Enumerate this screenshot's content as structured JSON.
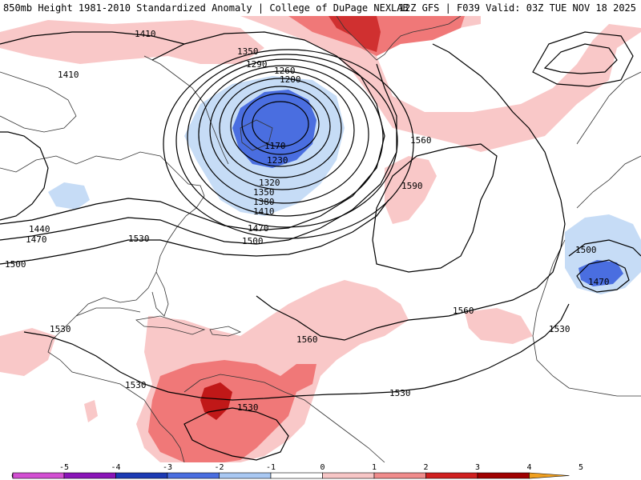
{
  "header": {
    "title_left": "850mb Height 1981-2010 Standardized Anomaly | College of DuPage NEXLAB",
    "title_right": "12Z GFS | F039 Valid: 03Z TUE NOV 18 2025"
  },
  "contour_labels": [
    {
      "name": "label-1410-nw",
      "text": "1410"
    },
    {
      "name": "label-1410-w",
      "text": "1410"
    },
    {
      "name": "label-1350",
      "text": "1350"
    },
    {
      "name": "label-1290",
      "text": "1290"
    },
    {
      "name": "label-1260",
      "text": "1260"
    },
    {
      "name": "label-1200",
      "text": "1200"
    },
    {
      "name": "label-1170",
      "text": "1170"
    },
    {
      "name": "label-1230",
      "text": "1230"
    },
    {
      "name": "label-1320",
      "text": "1320"
    },
    {
      "name": "label-1350-s",
      "text": "1350"
    },
    {
      "name": "label-1380",
      "text": "1380"
    },
    {
      "name": "label-1410-s",
      "text": "1410"
    },
    {
      "name": "label-1470",
      "text": "1470"
    },
    {
      "name": "label-1500",
      "text": "1500"
    },
    {
      "name": "label-1440",
      "text": "1440"
    },
    {
      "name": "label-1470-w",
      "text": "1470"
    },
    {
      "name": "label-1500-w",
      "text": "1500"
    },
    {
      "name": "label-1530",
      "text": "1530"
    },
    {
      "name": "label-1560-n",
      "text": "1560"
    },
    {
      "name": "label-1590",
      "text": "1590"
    },
    {
      "name": "label-1560-c",
      "text": "1560"
    },
    {
      "name": "label-1560-s",
      "text": "1560"
    },
    {
      "name": "label-1530-e",
      "text": "1530"
    },
    {
      "name": "label-1530-gulf",
      "text": "1530"
    },
    {
      "name": "label-1530-carib",
      "text": "1530"
    },
    {
      "name": "label-1530-sa",
      "text": "1530"
    },
    {
      "name": "label-1530-atl",
      "text": "1530"
    },
    {
      "name": "label-1500-af",
      "text": "1500"
    },
    {
      "name": "label-1470-af",
      "text": "1470"
    }
  ],
  "colorbar": {
    "ticks": [
      "-5",
      "-4",
      "-3",
      "-2",
      "-1",
      "0",
      "1",
      "2",
      "3",
      "4",
      "5"
    ],
    "colors": [
      "#d24fd2",
      "#8a14b8",
      "#1c3ab4",
      "#4a6ee0",
      "#a9c8f2",
      "#ffffff",
      "#f7c6c6",
      "#f08c8c",
      "#d02020",
      "#a00000",
      "#f0a020"
    ]
  },
  "anomaly_colors": {
    "minus1": "#c6dcf6",
    "minus2": "#4a6ee0",
    "plus1": "#f9c8c8",
    "plus2": "#f07878",
    "plus3": "#c01818"
  }
}
